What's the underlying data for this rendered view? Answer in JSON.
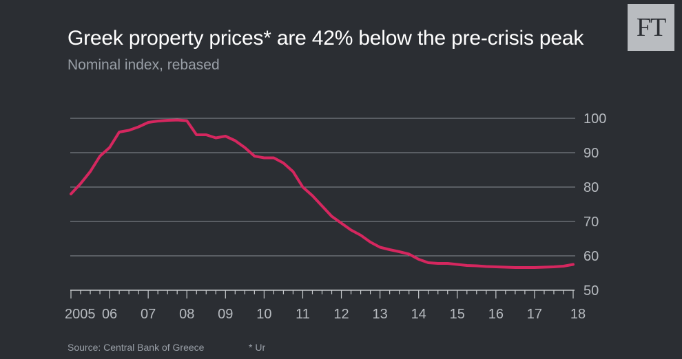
{
  "header": {
    "title": "Greek property prices* are 42% below the pre-crisis peak",
    "subtitle": "Nominal index, rebased"
  },
  "brand": {
    "logo_text": "FT",
    "accent_color": "#d5275f",
    "background_color": "#2b2e33"
  },
  "footer": {
    "source": "Source: Central Bank of Greece",
    "note": "* Ur"
  },
  "chart_data": {
    "type": "line",
    "title": "Greek property prices* are 42% below the pre-crisis peak",
    "subtitle": "Nominal index, rebased",
    "xlabel": "",
    "ylabel": "",
    "xlim": [
      2005,
      2018
    ],
    "ylim": [
      50,
      100
    ],
    "grid": true,
    "y_axis_side": "right",
    "y_ticks": [
      100,
      90,
      80,
      70,
      60,
      50
    ],
    "x_ticks": [
      2005,
      2006,
      2007,
      2008,
      2009,
      2010,
      2011,
      2012,
      2013,
      2014,
      2015,
      2016,
      2017,
      2018
    ],
    "x_tick_labels": [
      "2005",
      "06",
      "07",
      "08",
      "09",
      "10",
      "11",
      "12",
      "13",
      "14",
      "15",
      "16",
      "17",
      "18"
    ],
    "series": [
      {
        "color": "#d5275f",
        "x": [
          2005.0,
          2005.25,
          2005.5,
          2005.75,
          2006.0,
          2006.25,
          2006.5,
          2006.75,
          2007.0,
          2007.25,
          2007.5,
          2007.75,
          2008.0,
          2008.25,
          2008.5,
          2008.75,
          2009.0,
          2009.25,
          2009.5,
          2009.75,
          2010.0,
          2010.25,
          2010.5,
          2010.75,
          2011.0,
          2011.25,
          2011.5,
          2011.75,
          2012.0,
          2012.25,
          2012.5,
          2012.75,
          2013.0,
          2013.25,
          2013.5,
          2013.75,
          2014.0,
          2014.25,
          2014.5,
          2014.75,
          2015.0,
          2015.25,
          2015.5,
          2015.75,
          2016.0,
          2016.25,
          2016.5,
          2016.75,
          2017.0,
          2017.25,
          2017.5,
          2017.75,
          2018.0
        ],
        "values": [
          78,
          81,
          84.5,
          89,
          91.5,
          96,
          96.5,
          97.5,
          98.8,
          99.2,
          99.4,
          99.5,
          99.3,
          95.2,
          95.2,
          94.3,
          94.8,
          93.5,
          91.5,
          89,
          88.5,
          88.5,
          87,
          84.5,
          80,
          77.5,
          74.5,
          71.5,
          69.5,
          67.5,
          66,
          64,
          62.5,
          61.8,
          61.2,
          60.5,
          59,
          58,
          57.8,
          57.8,
          57.5,
          57.2,
          57.1,
          56.9,
          56.8,
          56.7,
          56.6,
          56.6,
          56.6,
          56.7,
          56.8,
          57.0,
          57.5
        ]
      }
    ]
  }
}
